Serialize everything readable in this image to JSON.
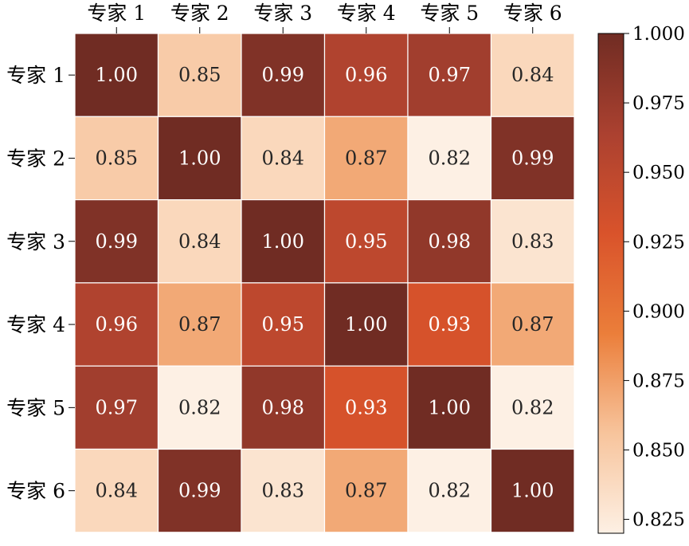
{
  "chart_data": {
    "type": "heatmap",
    "title": "",
    "xlabel": "",
    "ylabel": "",
    "x_categories": [
      "专家 1",
      "专家 2",
      "专家 3",
      "专家 4",
      "专家 5",
      "专家 6"
    ],
    "y_categories": [
      "专家 1",
      "专家 2",
      "专家 3",
      "专家 4",
      "专家 5",
      "专家 6"
    ],
    "x_axis_position": "top",
    "values": [
      [
        1.0,
        0.85,
        0.99,
        0.96,
        0.97,
        0.84
      ],
      [
        0.85,
        1.0,
        0.84,
        0.87,
        0.82,
        0.99
      ],
      [
        0.99,
        0.84,
        1.0,
        0.95,
        0.98,
        0.83
      ],
      [
        0.96,
        0.87,
        0.95,
        1.0,
        0.93,
        0.87
      ],
      [
        0.97,
        0.82,
        0.98,
        0.93,
        1.0,
        0.82
      ],
      [
        0.84,
        0.99,
        0.83,
        0.87,
        0.82,
        1.0
      ]
    ],
    "cell_labels": [
      [
        "1.00",
        "0.85",
        "0.99",
        "0.96",
        "0.97",
        "0.84"
      ],
      [
        "0.85",
        "1.00",
        "0.84",
        "0.87",
        "0.82",
        "0.99"
      ],
      [
        "0.99",
        "0.84",
        "1.00",
        "0.95",
        "0.98",
        "0.83"
      ],
      [
        "0.96",
        "0.87",
        "0.95",
        "1.00",
        "0.93",
        "0.87"
      ],
      [
        "0.97",
        "0.82",
        "0.98",
        "0.93",
        "1.00",
        "0.82"
      ],
      [
        "0.84",
        "0.99",
        "0.83",
        "0.87",
        "0.82",
        "1.00"
      ]
    ],
    "colorbar": {
      "range": [
        0.82,
        1.0
      ],
      "ticks": [
        0.825,
        0.85,
        0.875,
        0.9,
        0.925,
        0.95,
        0.975,
        1.0
      ],
      "tick_labels": [
        "0.825",
        "0.850",
        "0.875",
        "0.900",
        "0.925",
        "0.950",
        "0.975",
        "1.000"
      ],
      "colormap": [
        "#fdf0e4",
        "#f7c49c",
        "#eb7e3a",
        "#d9532b",
        "#ab4130",
        "#702c23"
      ]
    }
  }
}
